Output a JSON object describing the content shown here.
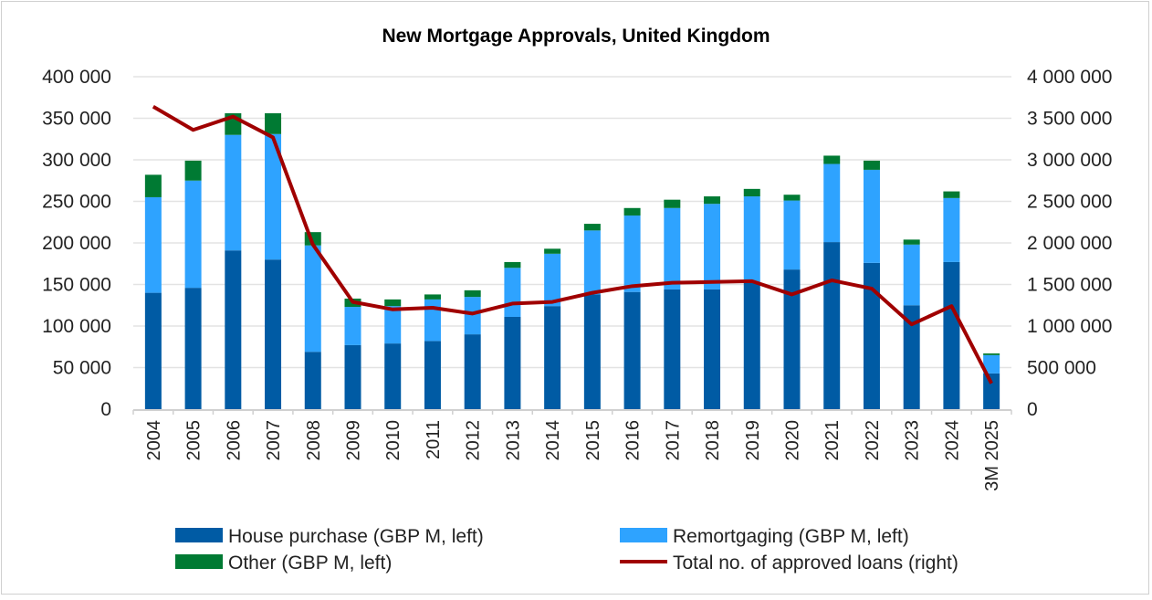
{
  "chart_data": {
    "type": "bar",
    "stacked": true,
    "title": "New Mortgage Approvals, United Kingdom",
    "categories": [
      "2004",
      "2005",
      "2006",
      "2007",
      "2008",
      "2009",
      "2010",
      "2011",
      "2012",
      "2013",
      "2014",
      "2015",
      "2016",
      "2017",
      "2018",
      "2019",
      "2020",
      "2021",
      "2022",
      "2023",
      "2024",
      "3M 2025"
    ],
    "left_axis": {
      "ylim": [
        0,
        400000
      ],
      "ticks": [
        "0",
        "50 000",
        "100 000",
        "150 000",
        "200 000",
        "250 000",
        "300 000",
        "350 000",
        "400 000"
      ]
    },
    "right_axis": {
      "ylim": [
        0,
        4000000
      ],
      "ticks": [
        "0",
        "500 000",
        "1 000 000",
        "1 500 000",
        "2 000 000",
        "2 500 000",
        "3 000 000",
        "3 500 000",
        "4 000 000"
      ]
    },
    "grid": true,
    "legend_position": "bottom",
    "series": [
      {
        "name": "House purchase (GBP M, left)",
        "type": "bar",
        "axis": "left",
        "color": "#005BA4",
        "values": [
          140000,
          146000,
          191000,
          180000,
          69000,
          77000,
          79000,
          82000,
          90000,
          111000,
          124000,
          138000,
          141000,
          144000,
          144000,
          152000,
          168000,
          201000,
          176000,
          125000,
          177000,
          43000
        ]
      },
      {
        "name": "Remortgaging (GBP M, left)",
        "type": "bar",
        "axis": "left",
        "color": "#2EA3FF",
        "values": [
          115000,
          129000,
          139000,
          151000,
          128000,
          46000,
          45000,
          50000,
          45000,
          59000,
          63000,
          77000,
          92000,
          98000,
          103000,
          104000,
          83000,
          94000,
          112000,
          73000,
          77000,
          22000
        ]
      },
      {
        "name": "Other (GBP M, left)",
        "type": "bar",
        "axis": "left",
        "color": "#007A33",
        "values": [
          27000,
          24000,
          26000,
          25000,
          16000,
          10000,
          8000,
          6000,
          8000,
          7000,
          6000,
          8000,
          9000,
          10000,
          9000,
          9000,
          7000,
          10000,
          11000,
          6000,
          8000,
          2000
        ]
      },
      {
        "name": "Total no. of approved loans (right)",
        "type": "line",
        "axis": "right",
        "color": "#A00000",
        "values": [
          3640000,
          3360000,
          3520000,
          3270000,
          1980000,
          1290000,
          1200000,
          1220000,
          1150000,
          1270000,
          1290000,
          1400000,
          1480000,
          1520000,
          1530000,
          1540000,
          1380000,
          1550000,
          1450000,
          1020000,
          1240000,
          310000
        ]
      }
    ]
  }
}
